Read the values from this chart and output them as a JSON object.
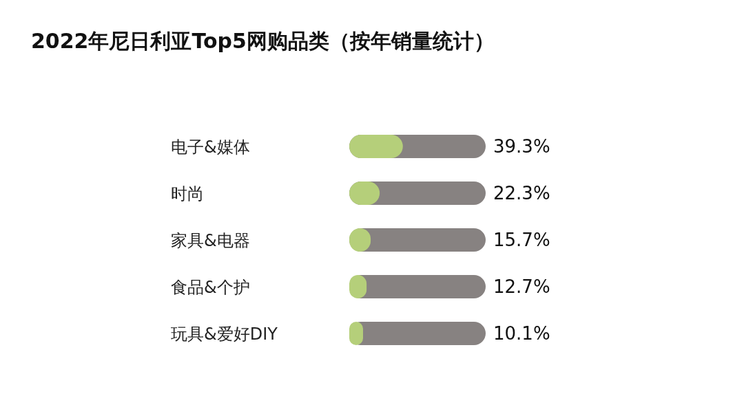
{
  "chart_data": {
    "type": "bar",
    "orientation": "horizontal",
    "title": "2022年尼日利亚Top5网购品类（按年销量统计）",
    "categories": [
      "电子&媒体",
      "时尚",
      "家具&电器",
      "食品&个护",
      "玩具&爱好DIY"
    ],
    "values": [
      39.3,
      22.3,
      15.7,
      12.7,
      10.1
    ],
    "value_labels": [
      "39.3%",
      "22.3%",
      "15.7%",
      "12.7%",
      "10.1%"
    ],
    "color": "#b5cf7a",
    "xlim": [
      0,
      100
    ],
    "tick_labels": "y"
  }
}
